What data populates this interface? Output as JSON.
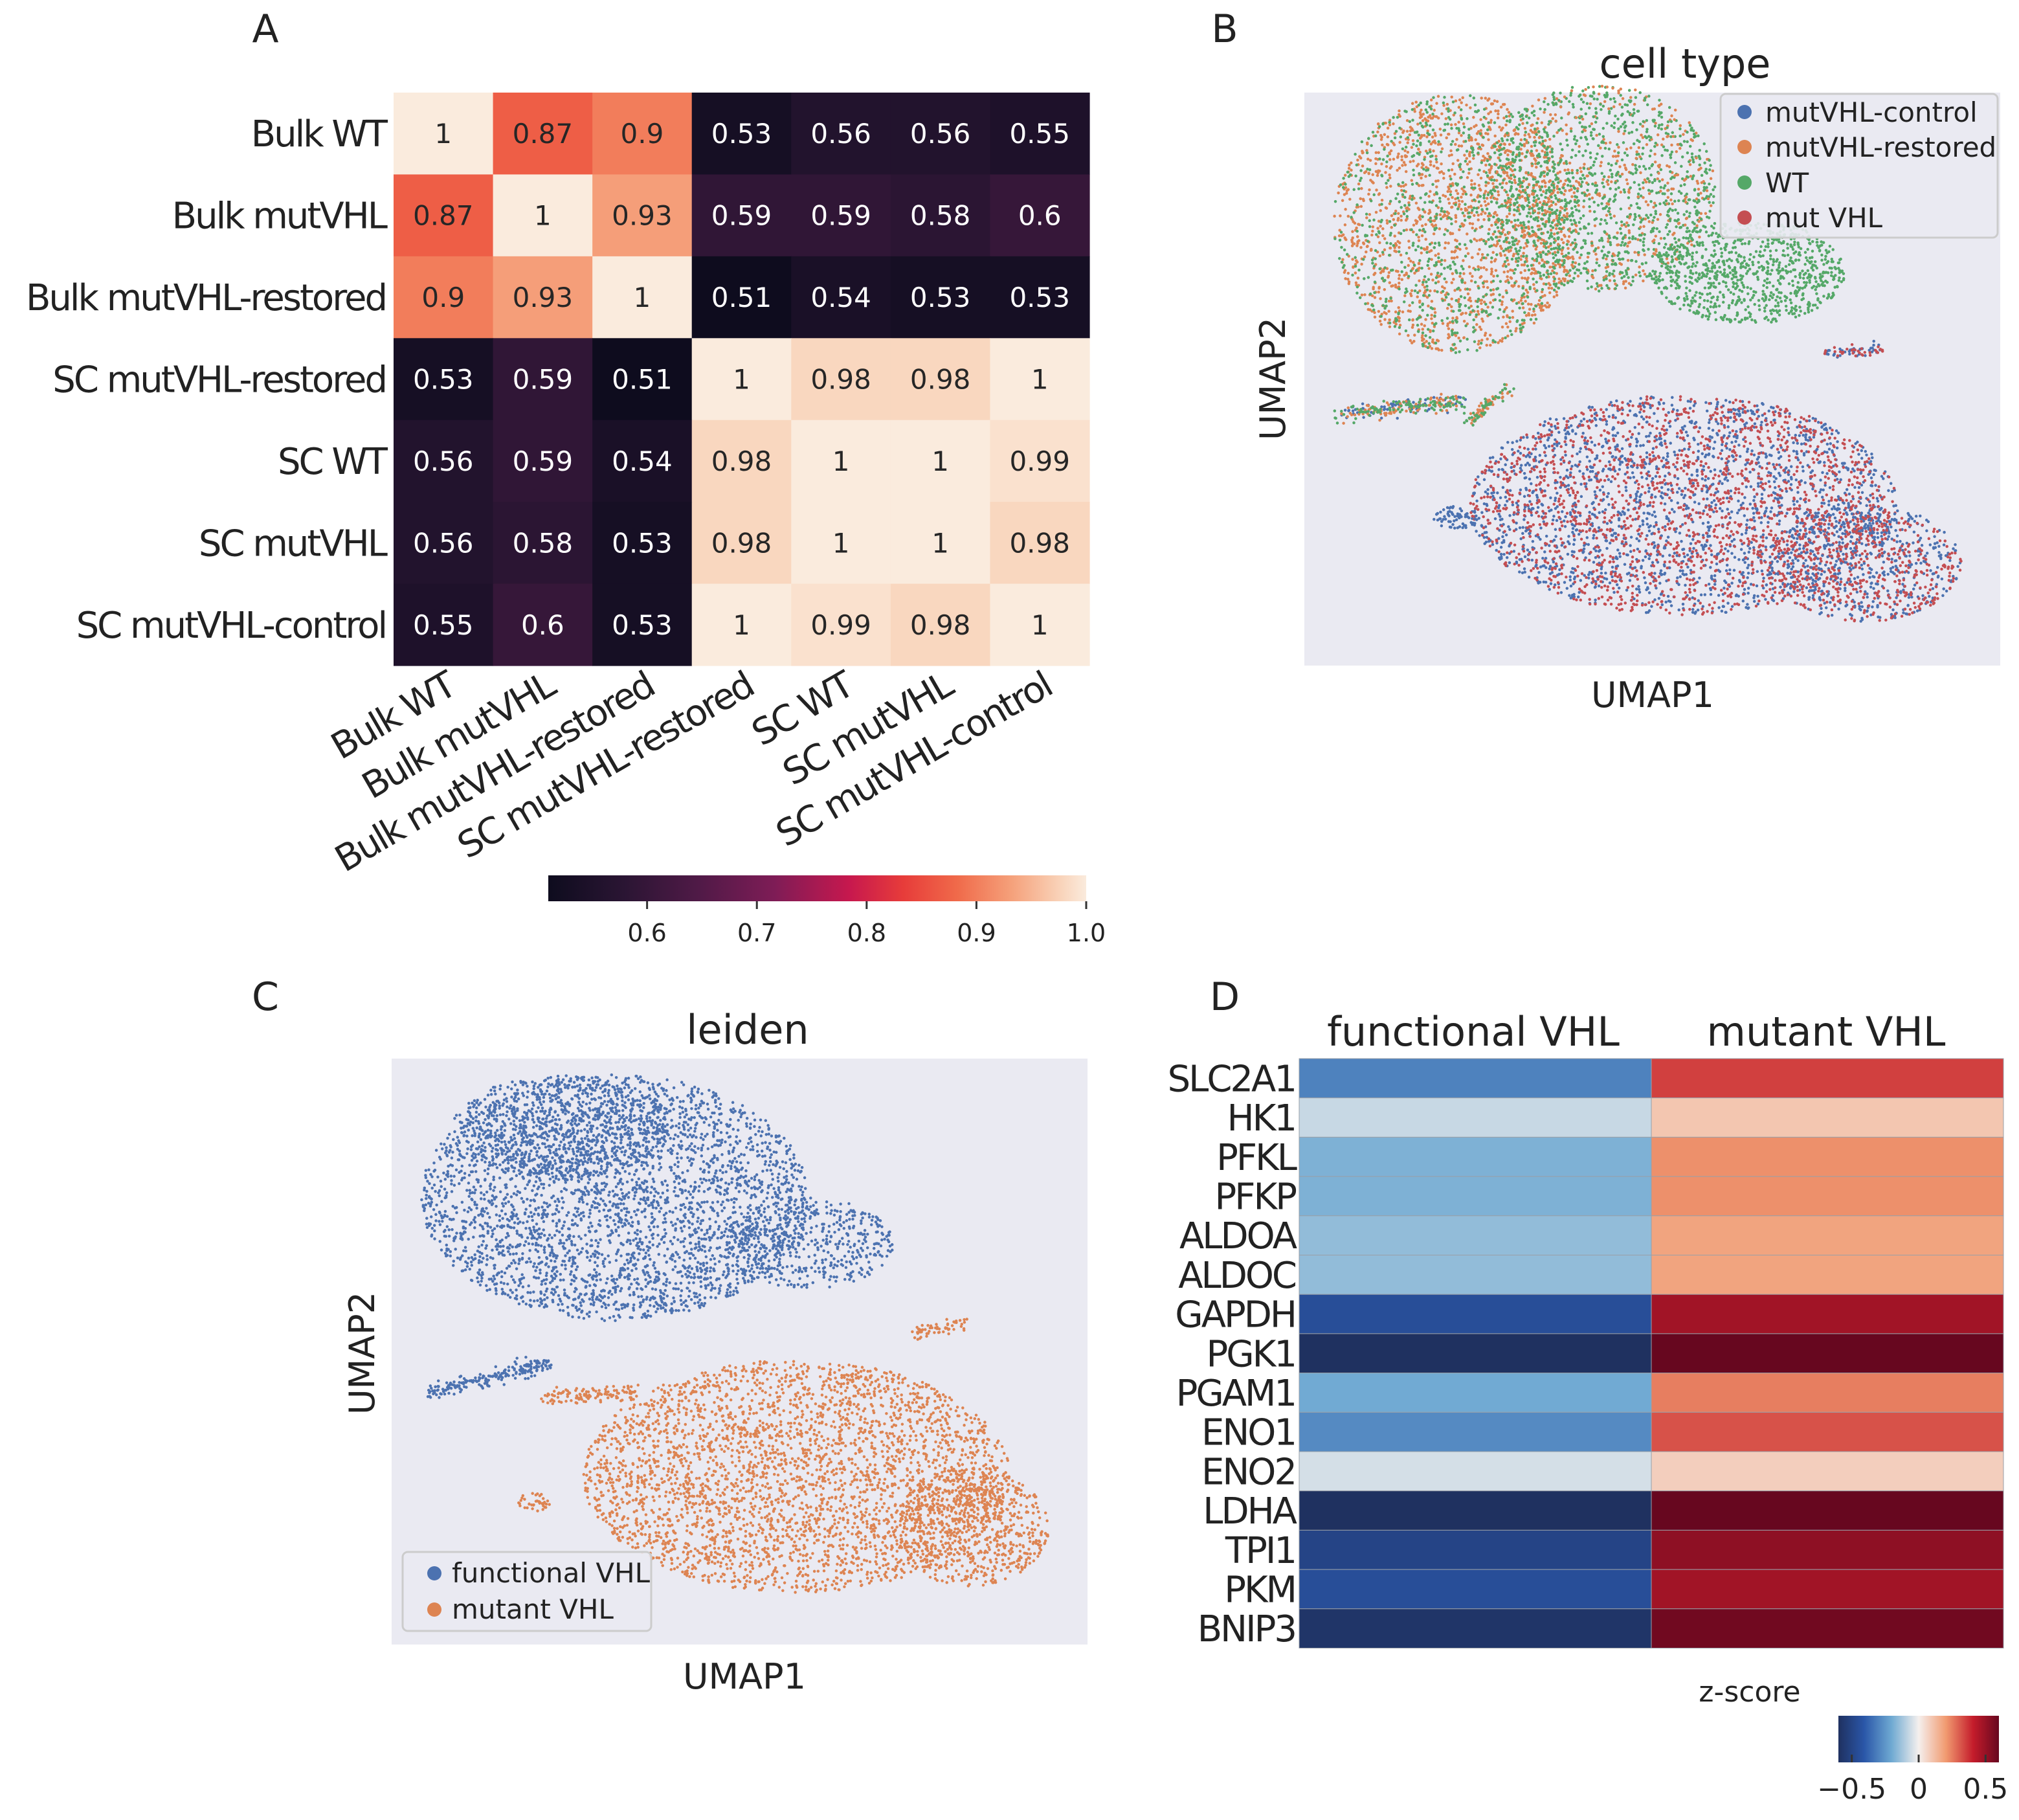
{
  "chart_data": [
    {
      "panel": "A",
      "type": "heatmap",
      "title": "",
      "rows": [
        "Bulk WT",
        "Bulk mutVHL",
        "Bulk mutVHL-restored",
        "SC mutVHL-restored",
        "SC WT",
        "SC mutVHL",
        "SC mutVHL-control"
      ],
      "cols": [
        "Bulk WT",
        "Bulk mutVHL",
        "Bulk mutVHL-restored",
        "SC mutVHL-restored",
        "SC WT",
        "SC mutVHL",
        "SC mutVHL-control"
      ],
      "values": [
        [
          1,
          0.87,
          0.9,
          0.53,
          0.56,
          0.56,
          0.55
        ],
        [
          0.87,
          1,
          0.93,
          0.59,
          0.59,
          0.58,
          0.6
        ],
        [
          0.9,
          0.93,
          1,
          0.51,
          0.54,
          0.53,
          0.53
        ],
        [
          0.53,
          0.59,
          0.51,
          1,
          0.98,
          0.98,
          1
        ],
        [
          0.56,
          0.59,
          0.54,
          0.98,
          1,
          1,
          0.99
        ],
        [
          0.56,
          0.58,
          0.53,
          0.98,
          1,
          1,
          0.98
        ],
        [
          0.55,
          0.6,
          0.53,
          1,
          0.99,
          0.98,
          1
        ]
      ],
      "colormap": "rocket",
      "colorbar": {
        "range": [
          0.51,
          1.0
        ],
        "ticks": [
          0.6,
          0.7,
          0.8,
          0.9,
          1.0
        ],
        "tick_labels": [
          "0.6",
          "0.7",
          "0.8",
          "0.9",
          "1.0"
        ]
      }
    },
    {
      "panel": "B",
      "type": "scatter",
      "title": "cell type",
      "xlabel": "UMAP1",
      "ylabel": "UMAP2",
      "legend_position": "top-right",
      "series": [
        {
          "name": "mutVHL-control",
          "color": "#4c72b0"
        },
        {
          "name": "mutVHL-restored",
          "color": "#dd8452"
        },
        {
          "name": "WT",
          "color": "#55a868"
        },
        {
          "name": "mut VHL",
          "color": "#c44e52"
        }
      ]
    },
    {
      "panel": "C",
      "type": "scatter",
      "title": "leiden",
      "xlabel": "UMAP1",
      "ylabel": "UMAP2",
      "legend_position": "bottom-left",
      "series": [
        {
          "name": "functional VHL",
          "color": "#4c72b0"
        },
        {
          "name": "mutant VHL",
          "color": "#dd8452"
        }
      ]
    },
    {
      "panel": "D",
      "type": "heatmap",
      "title": "",
      "columns": [
        "functional VHL",
        "mutant VHL"
      ],
      "rows": [
        "SLC2A1",
        "HK1",
        "PFKL",
        "PFKP",
        "ALDOA",
        "ALDOC",
        "GAPDH",
        "PGK1",
        "PGAM1",
        "ENO1",
        "ENO2",
        "LDHA",
        "TPI1",
        "PKM",
        "BNIP3"
      ],
      "values": [
        [
          -0.3,
          0.35
        ],
        [
          -0.07,
          0.1
        ],
        [
          -0.18,
          0.22
        ],
        [
          -0.18,
          0.22
        ],
        [
          -0.15,
          0.18
        ],
        [
          -0.15,
          0.18
        ],
        [
          -0.45,
          0.48
        ],
        [
          -0.6,
          0.6
        ],
        [
          -0.2,
          0.25
        ],
        [
          -0.28,
          0.32
        ],
        [
          -0.05,
          0.08
        ],
        [
          -0.6,
          0.6
        ],
        [
          -0.5,
          0.52
        ],
        [
          -0.45,
          0.48
        ],
        [
          -0.58,
          0.58
        ]
      ],
      "colormap": "RdBu_r",
      "colorbar": {
        "label": "z-score",
        "range": [
          -0.6,
          0.6
        ],
        "ticks": [
          -0.5,
          0,
          0.5
        ],
        "tick_labels": [
          "−0.5",
          "0",
          "0.5"
        ]
      }
    }
  ],
  "panel_labels": [
    "A",
    "B",
    "C",
    "D"
  ],
  "colors": {
    "plot_background": "#eaeaf2",
    "blue": "#4c72b0",
    "orange": "#dd8452",
    "green": "#55a868",
    "red": "#c44e52"
  }
}
